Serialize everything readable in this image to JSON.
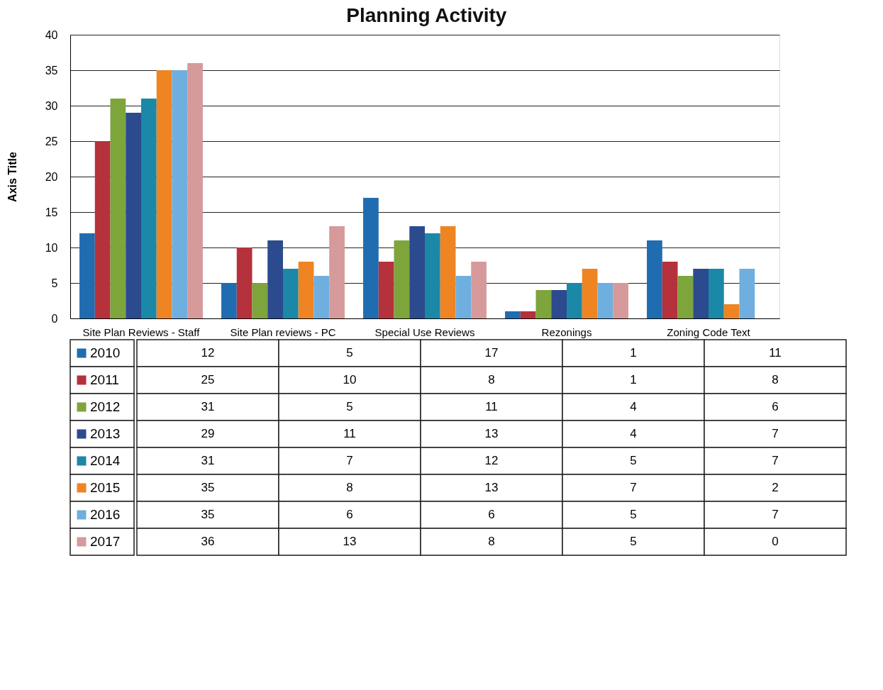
{
  "chart_data": {
    "type": "bar",
    "title": "Planning Activity",
    "ylabel": "Axis Title",
    "categories": [
      "Site Plan Reviews - Staff",
      "Site Plan reviews - PC",
      "Special Use Reviews",
      "Rezonings",
      "Zoning Code Text"
    ],
    "series": [
      {
        "name": "2010",
        "color": "#1f6db0",
        "values": [
          12,
          5,
          17,
          1,
          11
        ]
      },
      {
        "name": "2011",
        "color": "#b5313c",
        "values": [
          25,
          10,
          8,
          1,
          8
        ]
      },
      {
        "name": "2012",
        "color": "#7ea43c",
        "values": [
          31,
          5,
          11,
          4,
          6
        ]
      },
      {
        "name": "2013",
        "color": "#2b4b8e",
        "values": [
          29,
          11,
          13,
          4,
          7
        ]
      },
      {
        "name": "2014",
        "color": "#1b88a8",
        "values": [
          31,
          7,
          12,
          5,
          7
        ]
      },
      {
        "name": "2015",
        "color": "#ef8423",
        "values": [
          35,
          8,
          13,
          7,
          2
        ]
      },
      {
        "name": "2016",
        "color": "#6fafdf",
        "values": [
          35,
          6,
          6,
          5,
          7
        ]
      },
      {
        "name": "2017",
        "color": "#d69a9b",
        "values": [
          36,
          13,
          8,
          5,
          0
        ]
      }
    ],
    "ylim": [
      0,
      40
    ],
    "yticks": [
      0,
      5,
      10,
      15,
      20,
      25,
      30,
      35,
      40
    ],
    "grid": "y",
    "legend": "bottom",
    "data_labels": true
  }
}
